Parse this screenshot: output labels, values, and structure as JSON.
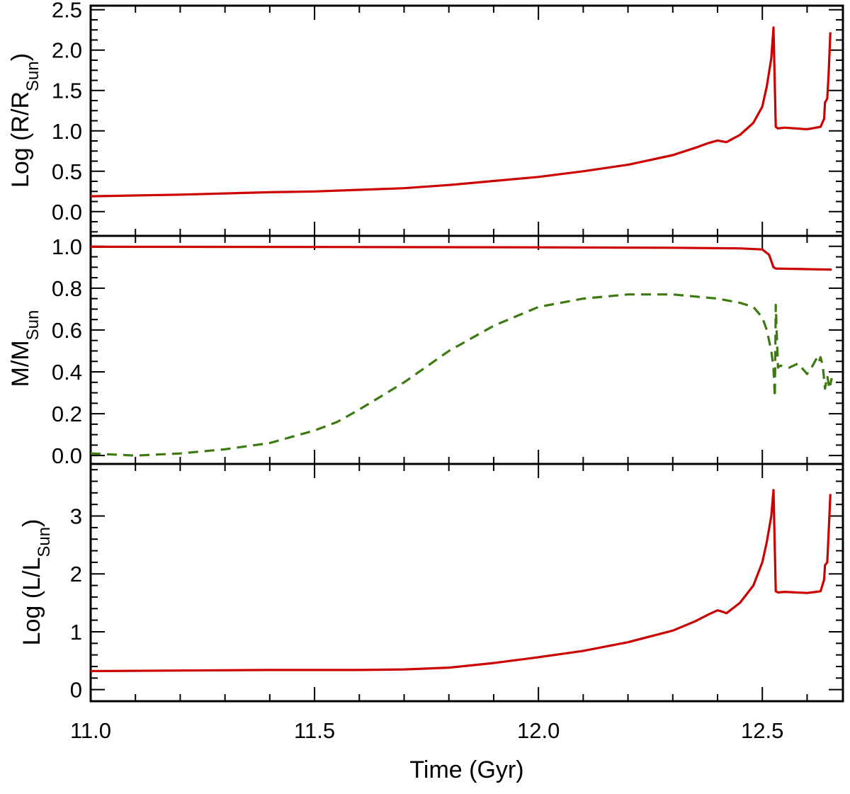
{
  "chart_data": [
    {
      "type": "line",
      "ylabel": "Log (R/R",
      "ylabel_sub": "Sun",
      "ylabel_close": ")",
      "xlim": [
        11.0,
        12.68
      ],
      "ylim": [
        -0.3,
        2.55
      ],
      "yticks": [
        0.0,
        0.5,
        1.0,
        1.5,
        2.0,
        2.5
      ],
      "ytick_labels": [
        "0.0",
        "0.5",
        "1.0",
        "1.5",
        "2.0",
        "2.5"
      ],
      "colors": {
        "main": "#cc0000"
      },
      "series": [
        {
          "style": "solid",
          "color": "#cc0000",
          "x": [
            11.0,
            11.2,
            11.4,
            11.5,
            11.6,
            11.7,
            11.8,
            11.9,
            12.0,
            12.1,
            12.2,
            12.3,
            12.35,
            12.38,
            12.4,
            12.41,
            12.42,
            12.45,
            12.48,
            12.5,
            12.51,
            12.52,
            12.525,
            12.53,
            12.535,
            12.55,
            12.6,
            12.63,
            12.638,
            12.64,
            12.645,
            12.648,
            12.652
          ],
          "y": [
            0.19,
            0.21,
            0.24,
            0.25,
            0.27,
            0.29,
            0.33,
            0.38,
            0.43,
            0.5,
            0.58,
            0.7,
            0.79,
            0.85,
            0.88,
            0.87,
            0.86,
            0.95,
            1.1,
            1.3,
            1.55,
            1.9,
            2.28,
            1.05,
            1.03,
            1.04,
            1.02,
            1.05,
            1.15,
            1.35,
            1.4,
            1.7,
            2.22
          ]
        }
      ]
    },
    {
      "type": "line",
      "ylabel": "M/M",
      "ylabel_sub": "Sun",
      "xlim": [
        11.0,
        12.68
      ],
      "ylim": [
        -0.04,
        1.05
      ],
      "yticks": [
        0.0,
        0.2,
        0.4,
        0.6,
        0.8,
        1.0
      ],
      "ytick_labels": [
        "0.0",
        "0.2",
        "0.4",
        "0.6",
        "0.8",
        "1.0"
      ],
      "colors": {
        "main": "#cc0000",
        "secondary": "#3d7a12"
      },
      "series": [
        {
          "style": "solid",
          "color": "#cc0000",
          "x": [
            11.0,
            11.5,
            12.0,
            12.3,
            12.45,
            12.5,
            12.515,
            12.525,
            12.53,
            12.6,
            12.655
          ],
          "y": [
            0.998,
            0.997,
            0.995,
            0.993,
            0.99,
            0.985,
            0.96,
            0.9,
            0.894,
            0.891,
            0.889
          ]
        },
        {
          "style": "dashed",
          "color": "#3d7a12",
          "x": [
            11.0,
            11.1,
            11.2,
            11.3,
            11.4,
            11.5,
            11.55,
            11.6,
            11.7,
            11.8,
            11.9,
            12.0,
            12.1,
            12.2,
            12.3,
            12.4,
            12.45,
            12.48,
            12.5,
            12.51,
            12.515,
            12.52,
            12.525,
            12.528,
            12.53,
            12.535,
            12.54,
            12.56,
            12.58,
            12.6,
            12.61,
            12.62,
            12.625,
            12.63,
            12.635,
            12.64,
            12.645,
            12.65,
            12.655
          ],
          "y": [
            0.01,
            0.0,
            0.01,
            0.03,
            0.06,
            0.12,
            0.16,
            0.22,
            0.35,
            0.5,
            0.62,
            0.71,
            0.75,
            0.77,
            0.77,
            0.75,
            0.73,
            0.71,
            0.66,
            0.6,
            0.55,
            0.5,
            0.42,
            0.28,
            0.72,
            0.42,
            0.43,
            0.42,
            0.44,
            0.39,
            0.42,
            0.46,
            0.44,
            0.47,
            0.43,
            0.32,
            0.38,
            0.32,
            0.37
          ]
        }
      ]
    },
    {
      "type": "line",
      "ylabel": "Log (L/L",
      "ylabel_sub": "Sun",
      "ylabel_close": ")",
      "xlabel": "Time (Gyr)",
      "xlim": [
        11.0,
        12.68
      ],
      "ylim": [
        -0.2,
        3.9
      ],
      "yticks": [
        0,
        1,
        2,
        3
      ],
      "ytick_labels": [
        "0",
        "1",
        "2",
        "3"
      ],
      "xticks": [
        11.0,
        11.5,
        12.0,
        12.5
      ],
      "xtick_labels": [
        "11.0",
        "11.5",
        "12.0",
        "12.5"
      ],
      "colors": {
        "main": "#cc0000"
      },
      "series": [
        {
          "style": "solid",
          "color": "#cc0000",
          "x": [
            11.0,
            11.2,
            11.4,
            11.5,
            11.6,
            11.7,
            11.8,
            11.9,
            12.0,
            12.1,
            12.2,
            12.3,
            12.35,
            12.38,
            12.4,
            12.41,
            12.42,
            12.45,
            12.48,
            12.5,
            12.51,
            12.52,
            12.525,
            12.53,
            12.535,
            12.55,
            12.6,
            12.63,
            12.638,
            12.64,
            12.645,
            12.648,
            12.652
          ],
          "y": [
            0.32,
            0.33,
            0.34,
            0.34,
            0.34,
            0.35,
            0.38,
            0.46,
            0.56,
            0.67,
            0.82,
            1.02,
            1.18,
            1.3,
            1.37,
            1.35,
            1.32,
            1.5,
            1.8,
            2.2,
            2.55,
            3.0,
            3.45,
            1.7,
            1.68,
            1.69,
            1.67,
            1.7,
            1.9,
            2.15,
            2.2,
            2.7,
            3.38
          ]
        }
      ]
    }
  ]
}
